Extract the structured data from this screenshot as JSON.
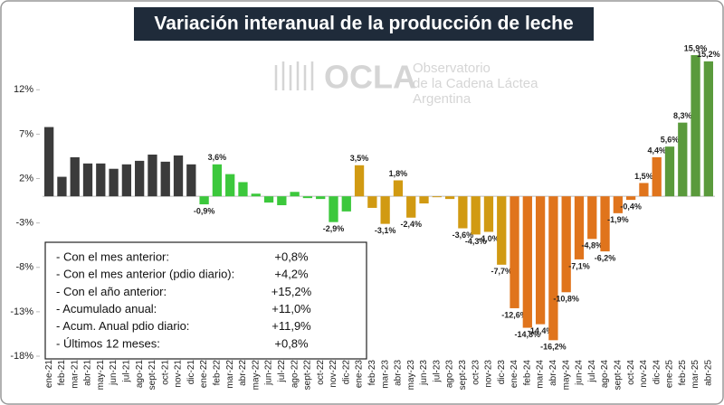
{
  "chart_data": {
    "type": "bar",
    "title": "Variación interanual de la producción de leche",
    "watermark": {
      "logo": "OCLA",
      "lines": [
        "Observatorio",
        "de la Cadena Láctea",
        "Argentina"
      ]
    },
    "categories": [
      "ene-21",
      "feb-21",
      "mar-21",
      "abr-21",
      "may-21",
      "jun-21",
      "jul-21",
      "ago-21",
      "sept-21",
      "oct-21",
      "nov-21",
      "dic-21",
      "ene-22",
      "feb-22",
      "mar-22",
      "abr-22",
      "may-22",
      "jun-22",
      "jul-22",
      "ago-22",
      "sept-22",
      "oct-22",
      "nov-22",
      "dic-22",
      "ene-23",
      "feb-23",
      "mar-23",
      "abr-23",
      "may-23",
      "jun-23",
      "jul-23",
      "ago-23",
      "sept-23",
      "oct-23",
      "nov-23",
      "dic-23",
      "ene-24",
      "feb-24",
      "mar-24",
      "abr-24",
      "may-24",
      "jun-24",
      "jul-24",
      "ago-24",
      "sept-24",
      "oct-24",
      "nov-24",
      "dic-24",
      "ene-25",
      "feb-25",
      "mar-25",
      "abr-25"
    ],
    "values": [
      7.8,
      2.2,
      4.4,
      3.7,
      3.7,
      3.1,
      3.6,
      4.0,
      4.7,
      3.9,
      4.6,
      3.6,
      -0.9,
      3.6,
      2.5,
      1.6,
      0.3,
      -0.7,
      -1.0,
      0.5,
      -0.2,
      -0.3,
      -2.9,
      -1.7,
      3.5,
      -1.3,
      -3.1,
      1.8,
      -2.4,
      -0.8,
      -0.1,
      -0.3,
      -3.6,
      -4.3,
      -4.0,
      -7.7,
      -12.6,
      -14.8,
      -14.4,
      -16.2,
      -10.8,
      -7.1,
      -4.8,
      -6.2,
      -1.9,
      -0.4,
      1.5,
      4.4,
      5.6,
      8.3,
      15.9,
      15.2
    ],
    "value_labels": [
      null,
      null,
      null,
      null,
      null,
      null,
      null,
      null,
      null,
      null,
      null,
      null,
      "-0,9%",
      "3,6%",
      null,
      null,
      null,
      null,
      null,
      null,
      null,
      null,
      "-2,9%",
      null,
      "3,5%",
      null,
      "-3,1%",
      "1,8%",
      "-2,4%",
      null,
      null,
      null,
      "-3,6%",
      "-4,3%",
      "-4,0%",
      "-7,7%",
      "-12,6%",
      "-14,8%",
      "-14,4%",
      "-16,2%",
      "-10,8%",
      "-7,1%",
      "-4,8%",
      "-6,2%",
      "-1,9%",
      "-0,4%",
      "1,5%",
      "4,4%",
      "5,6%",
      "8,3%",
      "15,9%",
      "15,2%"
    ],
    "colors": [
      "#3b3b3b",
      "#3b3b3b",
      "#3b3b3b",
      "#3b3b3b",
      "#3b3b3b",
      "#3b3b3b",
      "#3b3b3b",
      "#3b3b3b",
      "#3b3b3b",
      "#3b3b3b",
      "#3b3b3b",
      "#3b3b3b",
      "#3cc83c",
      "#3cc83c",
      "#3cc83c",
      "#3cc83c",
      "#3cc83c",
      "#3cc83c",
      "#3cc83c",
      "#3cc83c",
      "#3cc83c",
      "#3cc83c",
      "#3cc83c",
      "#3cc83c",
      "#d19a12",
      "#d19a12",
      "#d19a12",
      "#d19a12",
      "#d19a12",
      "#d19a12",
      "#d19a12",
      "#d19a12",
      "#d19a12",
      "#d19a12",
      "#d19a12",
      "#d19a12",
      "#e0741c",
      "#e0741c",
      "#e0741c",
      "#e0741c",
      "#e0741c",
      "#e0741c",
      "#e0741c",
      "#e0741c",
      "#e0741c",
      "#e0741c",
      "#e0741c",
      "#e0741c",
      "#5a9a3c",
      "#5a9a3c",
      "#5a9a3c",
      "#5a9a3c"
    ],
    "ylim": [
      -18,
      16
    ],
    "yticks": [
      {
        "value": -18,
        "label": "-18%"
      },
      {
        "value": -13,
        "label": "-13%"
      },
      {
        "value": -8,
        "label": "-8%"
      },
      {
        "value": -3,
        "label": "-3%"
      },
      {
        "value": 2,
        "label": "2%"
      },
      {
        "value": 7,
        "label": "7%"
      },
      {
        "value": 12,
        "label": "12%"
      }
    ],
    "grid": false,
    "summary": [
      {
        "label": "- Con el mes anterior:",
        "value": "+0,8%"
      },
      {
        "label": "- Con el mes anterior (pdio diario):",
        "value": "+4,2%"
      },
      {
        "label": "- Con el año anterior:",
        "value": "+15,2%"
      },
      {
        "label": "- Acumulado anual:",
        "value": "+11,0%"
      },
      {
        "label": "- Acum. Anual pdio diario:",
        "value": "+11,9%"
      },
      {
        "label": "- Últimos 12 meses:",
        "value": "+0,8%"
      }
    ]
  }
}
